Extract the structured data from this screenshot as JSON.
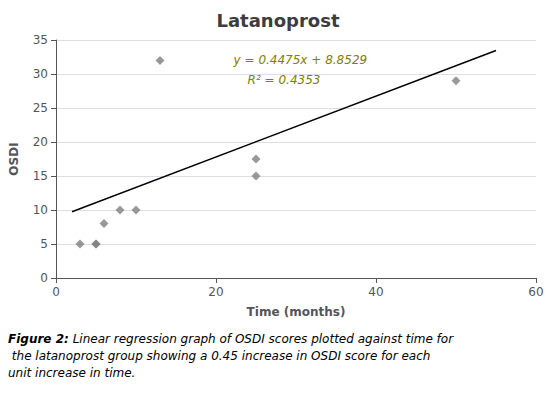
{
  "chart_data": {
    "type": "scatter",
    "title": "Latanoprost",
    "x_label": "Time (months)",
    "y_label": "OSDI",
    "series": [
      {
        "type": "scatter",
        "color": "#808080",
        "marker": "diamond",
        "x": [
          3,
          5,
          5,
          6,
          8,
          10,
          13,
          25,
          25,
          50
        ],
        "values": [
          5,
          5,
          5,
          8,
          10,
          10,
          32,
          15,
          17.5,
          29
        ]
      },
      {
        "type": "line",
        "color": "#000000",
        "line_style": "solid",
        "x": [
          2,
          55
        ],
        "values": [
          9.7479,
          33.4654
        ]
      }
    ],
    "annotations": [
      {
        "text": "y = 0.4475x + 8.8529",
        "color": "#808000"
      },
      {
        "text": "R² = 0.4353",
        "color": "#808000"
      }
    ],
    "caption": {
      "label": "Figure 2:",
      "body": " Linear regression graph of OSDI scores plotted against time for the latanoprost group showing a 0.45 increase in OSDI score for each unit increase in time."
    },
    "xlim": [
      0,
      60
    ],
    "ylim": [
      0,
      35
    ],
    "xticks": [
      0,
      20,
      40,
      60
    ],
    "yticks": [
      0,
      5,
      10,
      15,
      20,
      25,
      30,
      35
    ],
    "grid": "y"
  }
}
